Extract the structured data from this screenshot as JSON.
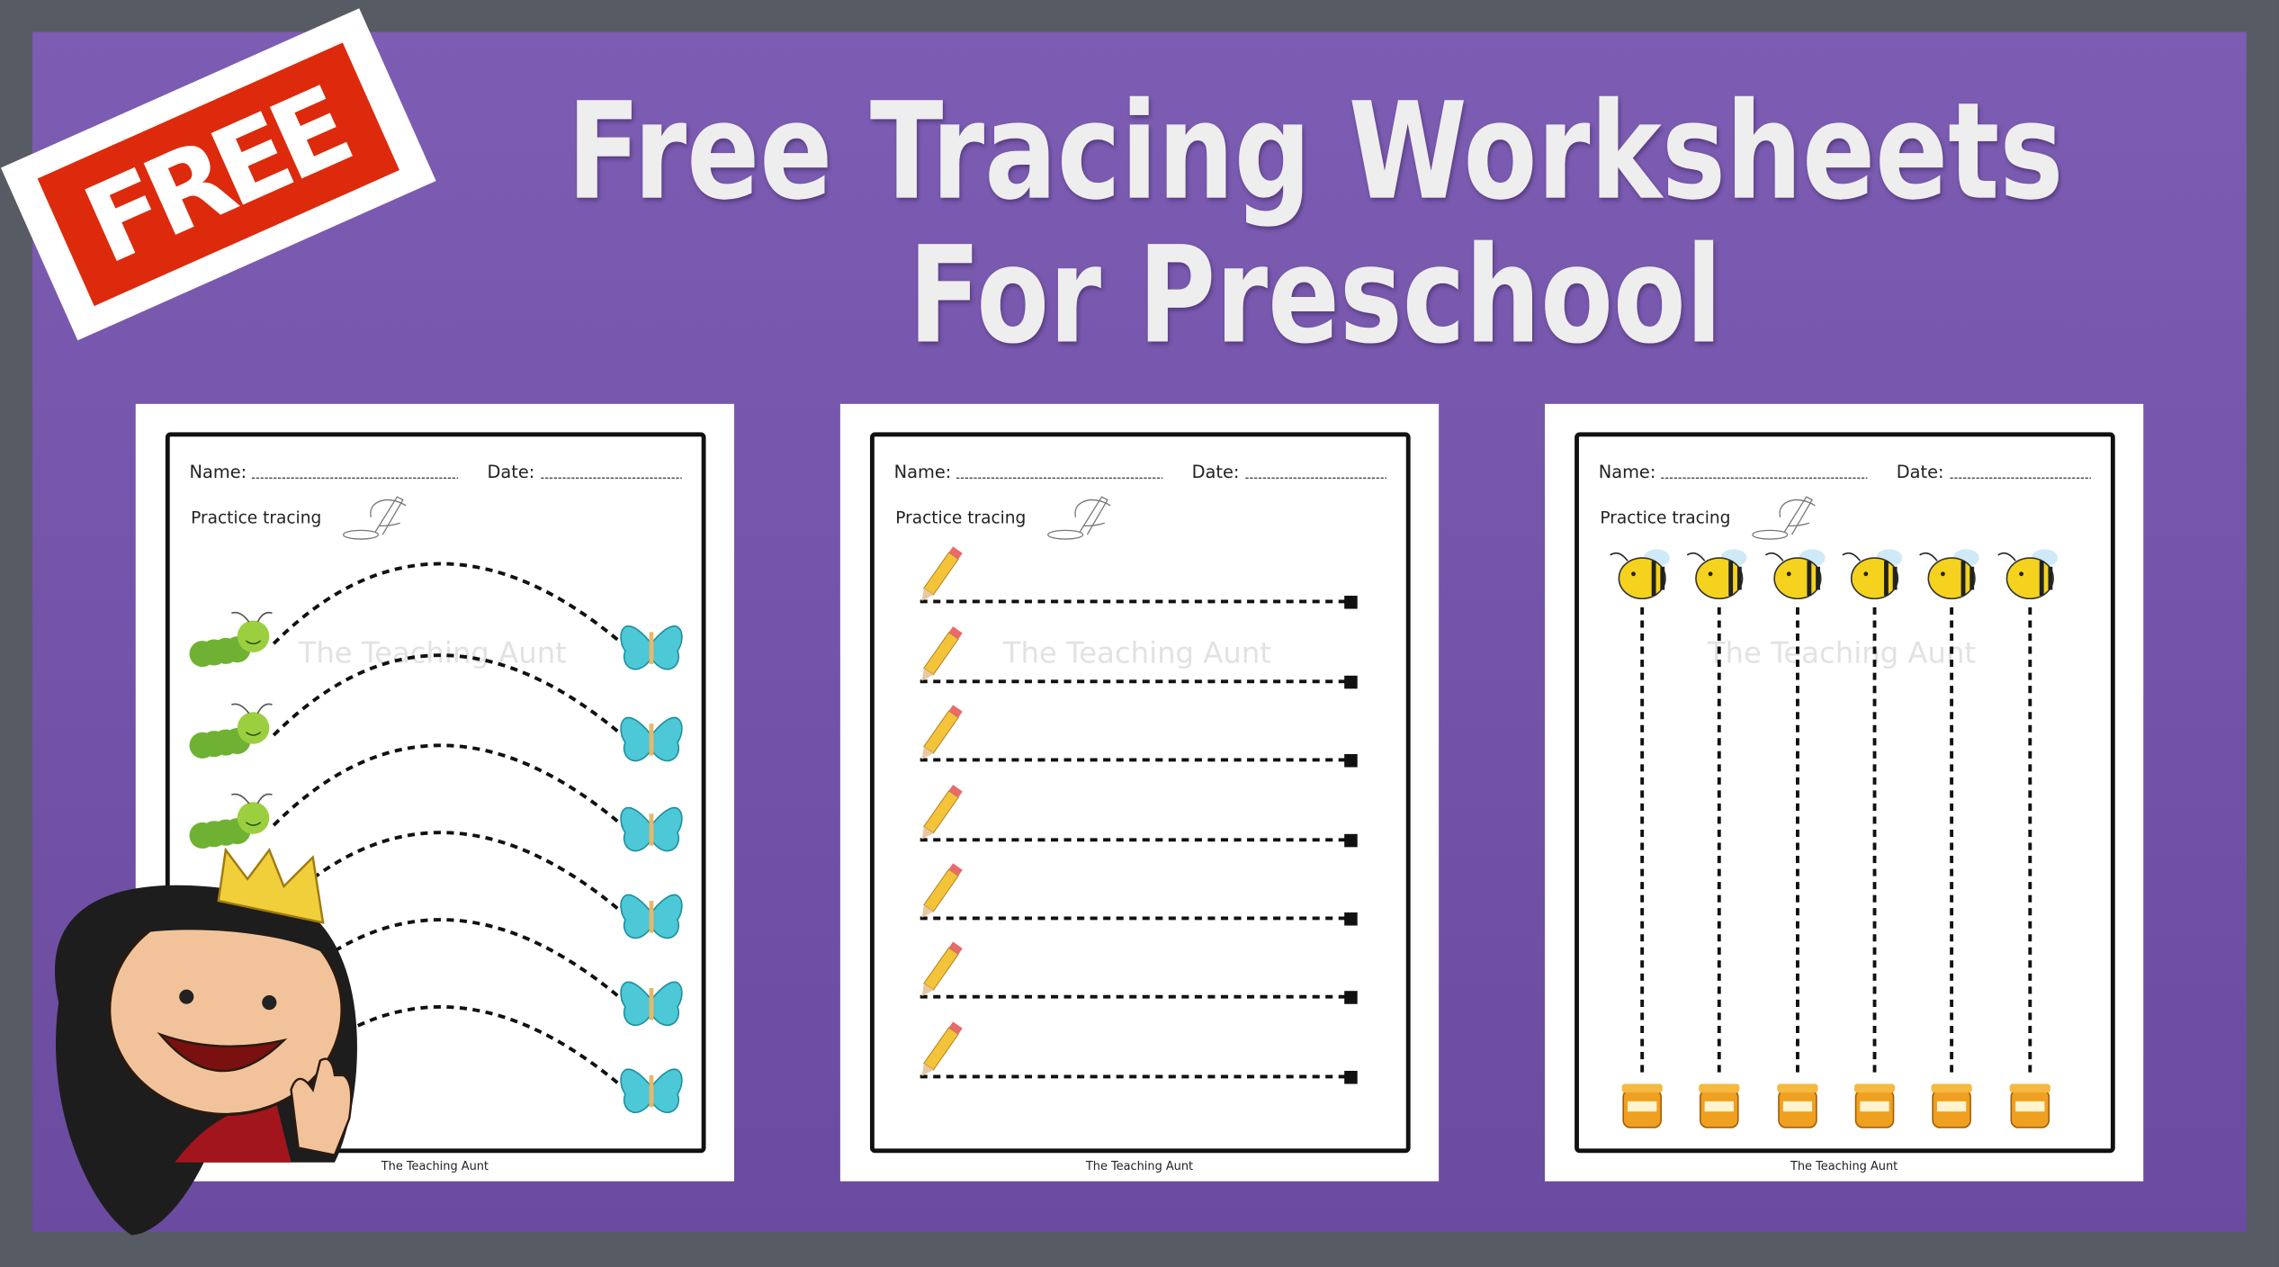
{
  "banner": {
    "stamp_text": "FREE",
    "title_line1": "Free Tracing Worksheets",
    "title_line2": "For Preschool"
  },
  "colors": {
    "frame": "#575b63",
    "background_top": "#7d5db3",
    "background_bottom": "#6b4b9f",
    "stamp_red": "#dd2a0c",
    "title_text": "#eeeeee",
    "caterpillar": "#7cbf3a",
    "butterfly": "#4cc8d6",
    "bee": "#f4d21d",
    "pencil": "#f3c33a"
  },
  "worksheets": [
    {
      "name_label": "Name:",
      "date_label": "Date:",
      "instruction": "Practice tracing",
      "watermark": "The Teaching Aunt",
      "footer": "The Teaching Aunt",
      "theme": "caterpillar-to-butterfly curves",
      "start_icon": "caterpillar-icon",
      "end_icon": "butterfly-icon"
    },
    {
      "name_label": "Name:",
      "date_label": "Date:",
      "instruction": "Practice tracing",
      "watermark": "The Teaching Aunt",
      "footer": "The Teaching Aunt",
      "theme": "horizontal lines",
      "start_icon": "pencil-icon",
      "end_icon": "square-icon"
    },
    {
      "name_label": "Name:",
      "date_label": "Date:",
      "instruction": "Practice tracing",
      "watermark": "The Teaching Aunt",
      "footer": "The Teaching Aunt",
      "theme": "vertical lines",
      "start_icon": "bee-icon",
      "end_icon": "honey-pot-icon"
    }
  ]
}
